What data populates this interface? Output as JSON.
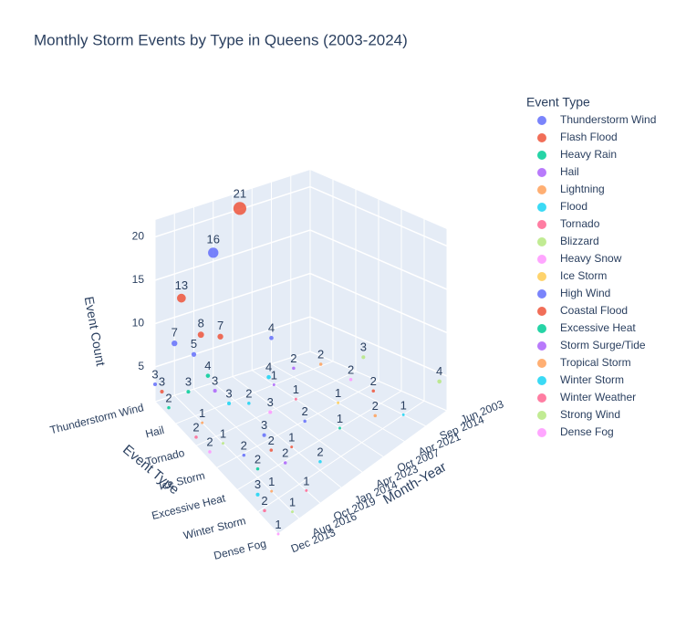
{
  "chart_data": {
    "type": "scatter3d",
    "title": "Monthly Storm Events by Type in Queens (2003-2024)",
    "x_title": "Month-Year",
    "y_title": "Event Type",
    "z_title": "Event Count",
    "legend_title": "Event Type",
    "x_categories": [
      "Jun 2003",
      "Sep 2014",
      "Apr 2021",
      "Oct 2007",
      "Apr 2023",
      "Jan 2014",
      "Oct 2019",
      "Aug 2016",
      "Dec 2013"
    ],
    "y_categories": [
      "Thunderstorm Wind",
      "Hail",
      "Tornado",
      "Ice Storm",
      "Excessive Heat",
      "Winter Storm",
      "Dense Fog"
    ],
    "zlim": [
      1,
      22
    ],
    "zticks": [
      5,
      10,
      15,
      20
    ],
    "series": [
      {
        "name": "Thunderstorm Wind",
        "color": "#636efa",
        "x": [
          "Jan 2014",
          "Oct 2019",
          "Aug 2016",
          "Apr 2021",
          "Dec 2013"
        ],
        "values": [
          16,
          5,
          7,
          4,
          3
        ]
      },
      {
        "name": "Flash Flood",
        "color": "#EF553B",
        "x": [
          "Apr 2023",
          "Aug 2016",
          "Oct 2019",
          "Jan 2014",
          "Dec 2013"
        ],
        "values": [
          21,
          13,
          8,
          7,
          3
        ]
      },
      {
        "name": "Heavy Rain",
        "color": "#00cc96",
        "x": [
          "Oct 2019",
          "Aug 2016",
          "Dec 2013"
        ],
        "values": [
          4,
          3,
          2
        ]
      },
      {
        "name": "Hail",
        "color": "#ab63fa",
        "x": [
          "Apr 2021",
          "Oct 2007",
          "Oct 2019"
        ],
        "values": [
          2,
          1,
          3
        ]
      },
      {
        "name": "Lightning",
        "color": "#FFA15A",
        "x": [
          "Sep 2014",
          "Aug 2016"
        ],
        "values": [
          2,
          1
        ]
      },
      {
        "name": "Flood",
        "color": "#19d3f3",
        "x": [
          "Apr 2023",
          "Jan 2014",
          "Oct 2019"
        ],
        "values": [
          4,
          2,
          3
        ]
      },
      {
        "name": "Tornado",
        "color": "#FF6692",
        "x": [
          "Oct 2007",
          "Dec 2013"
        ],
        "values": [
          1,
          2
        ]
      },
      {
        "name": "Blizzard",
        "color": "#B6E880",
        "x": [
          "Jun 2003",
          "Aug 2016"
        ],
        "values": [
          3,
          1
        ]
      },
      {
        "name": "Heavy Snow",
        "color": "#FF97FF",
        "x": [
          "Sep 2014",
          "Jan 2014",
          "Dec 2013"
        ],
        "values": [
          2,
          3,
          2
        ]
      },
      {
        "name": "Ice Storm",
        "color": "#FECB52",
        "x": [
          "Apr 2021"
        ],
        "values": [
          1
        ]
      },
      {
        "name": "High Wind",
        "color": "#636efa",
        "x": [
          "Oct 2019",
          "Aug 2016",
          "Apr 2023"
        ],
        "values": [
          3,
          2,
          2
        ]
      },
      {
        "name": "Coastal Flood",
        "color": "#EF553B",
        "x": [
          "Sep 2014",
          "Oct 2019",
          "Jan 2014"
        ],
        "values": [
          2,
          2,
          1
        ]
      },
      {
        "name": "Excessive Heat",
        "color": "#00cc96",
        "x": [
          "Aug 2016",
          "Oct 2007"
        ],
        "values": [
          2,
          1
        ]
      },
      {
        "name": "Storm Surge/Tide",
        "color": "#ab63fa",
        "x": [
          "Oct 2019"
        ],
        "values": [
          2
        ]
      },
      {
        "name": "Tropical Storm",
        "color": "#FFA15A",
        "x": [
          "Aug 2016",
          "Apr 2021"
        ],
        "values": [
          1,
          2
        ]
      },
      {
        "name": "Winter Storm",
        "color": "#19d3f3",
        "x": [
          "Jan 2014",
          "Dec 2013",
          "Sep 2014"
        ],
        "values": [
          2,
          3,
          1
        ]
      },
      {
        "name": "Winter Weather",
        "color": "#FF6692",
        "x": [
          "Dec 2013",
          "Oct 2019"
        ],
        "values": [
          2,
          1
        ]
      },
      {
        "name": "Strong Wind",
        "color": "#B6E880",
        "x": [
          "Jun 2003",
          "Aug 2016"
        ],
        "values": [
          4,
          1
        ]
      },
      {
        "name": "Dense Fog",
        "color": "#FF97FF",
        "x": [
          "Dec 2013"
        ],
        "values": [
          1
        ]
      }
    ]
  }
}
